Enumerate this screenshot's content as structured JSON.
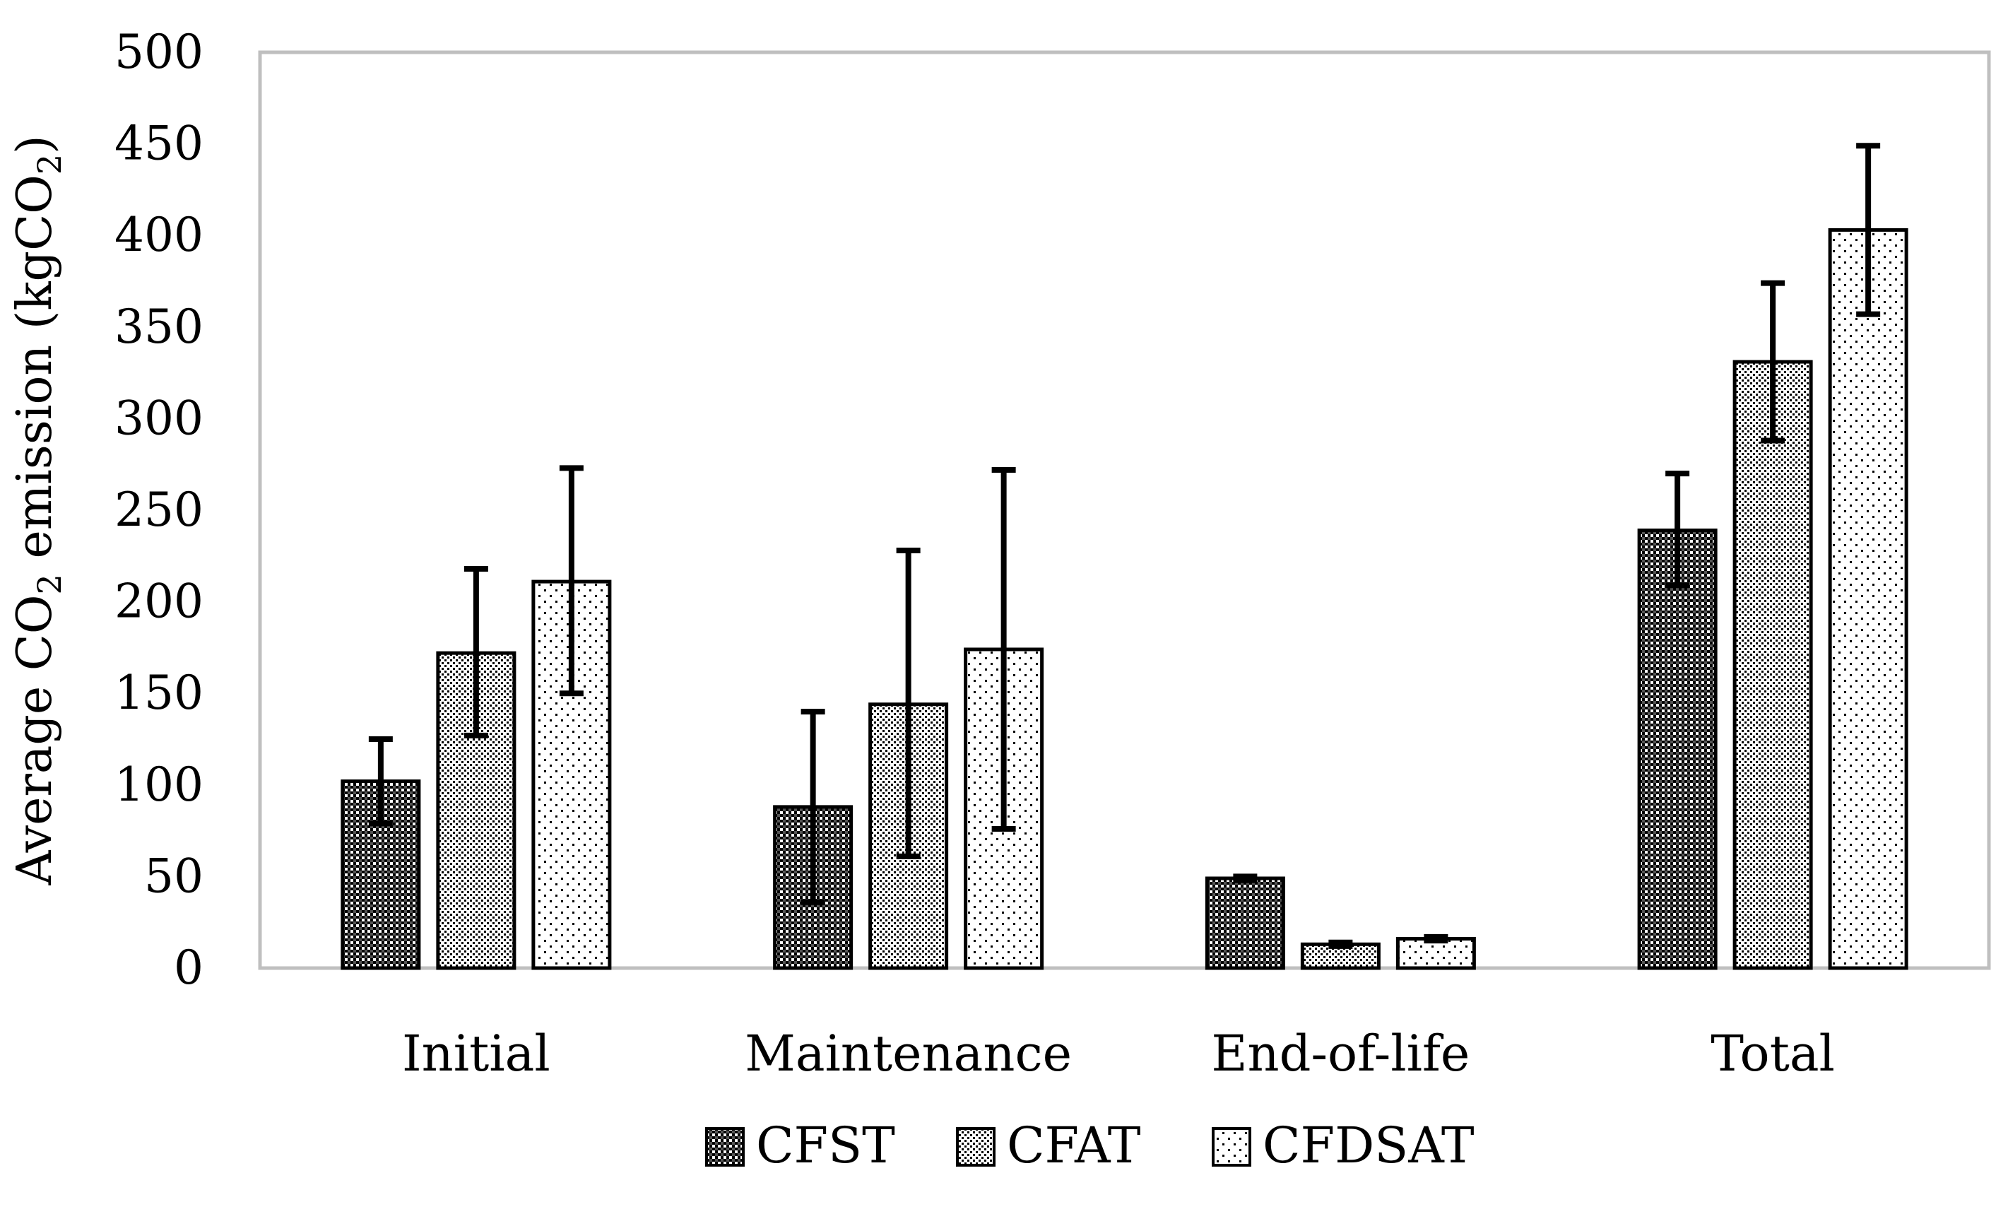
{
  "chart_data": {
    "type": "bar",
    "title": "",
    "xlabel": "",
    "ylabel": {
      "prefix": "Average CO",
      "sub1": "2",
      "middle": " emission (kgCO",
      "sub2": "2",
      "suffix": ")"
    },
    "ylim": [
      0,
      500
    ],
    "yticks": [
      0,
      50,
      100,
      150,
      200,
      250,
      300,
      350,
      400,
      450,
      500
    ],
    "grid": false,
    "legend_position": "bottom",
    "categories": [
      "Initial",
      "Maintenance",
      "End-of-life",
      "Total"
    ],
    "series": [
      {
        "name": "CFST",
        "pattern": "checker-dense",
        "values": [
          102,
          88,
          49,
          239
        ],
        "err_low": [
          79,
          36,
          48,
          209
        ],
        "err_high": [
          125,
          140,
          50,
          270
        ]
      },
      {
        "name": "CFAT",
        "pattern": "dots-dense",
        "values": [
          172,
          144,
          13,
          331
        ],
        "err_low": [
          127,
          61,
          12,
          288
        ],
        "err_high": [
          218,
          228,
          14,
          374
        ]
      },
      {
        "name": "CFDSAT",
        "pattern": "dots-sparse",
        "values": [
          211,
          174,
          16,
          403
        ],
        "err_low": [
          150,
          76,
          15,
          357
        ],
        "err_high": [
          273,
          272,
          17,
          449
        ]
      }
    ],
    "colors": {
      "axis": "#bfbfbf",
      "bar_stroke": "#000000",
      "error_bar": "#000000",
      "text": "#000000",
      "pattern_ink": "#000000",
      "background": "#ffffff"
    }
  }
}
